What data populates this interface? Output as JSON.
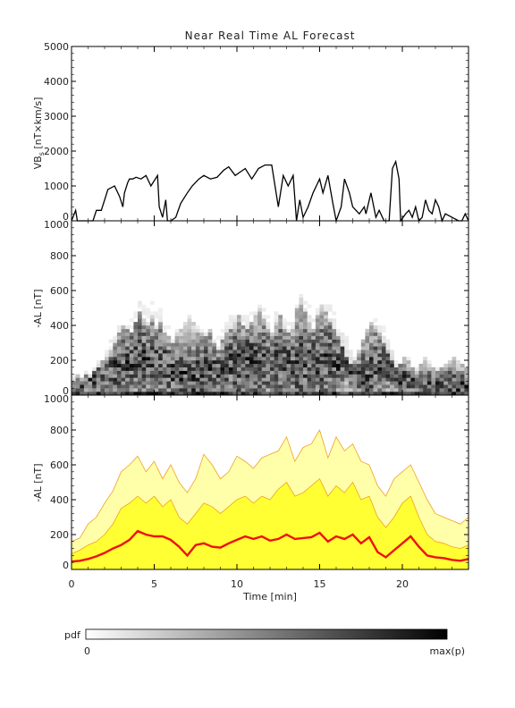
{
  "figure": {
    "title": "Near Real Time AL Forecast",
    "colorbar": {
      "label": "pdf",
      "min_label": "0",
      "max_label": "max(p)"
    }
  },
  "colors": {
    "vbs_line": "#000000",
    "median_line": "#ee1111",
    "band_inner": "#ffff33",
    "band_outer": "#ffffaa",
    "band_edge": "#f0a020",
    "pdf_dark": "#000000"
  },
  "chart_data": [
    {
      "type": "line",
      "panel": "vbs",
      "ylabel": "VB",
      "ylabel_sub": "s",
      "ylabel_units": " [nT×km/s]",
      "xlim": [
        0,
        24
      ],
      "ylim": [
        0,
        5000
      ],
      "yticks": [
        "0",
        "1000",
        "2000",
        "3000",
        "4000",
        "5000"
      ],
      "series": [
        {
          "x": [
            0,
            0.25,
            0.35,
            0.45,
            1.3,
            1.5,
            1.8,
            2.2,
            2.6,
            2.9,
            3.1,
            3.2,
            3.4,
            3.5,
            3.7,
            3.9,
            4.2,
            4.5,
            4.8,
            5.2,
            5.3,
            5.5,
            5.7,
            5.8,
            6.0,
            6.3,
            6.6,
            7.0,
            7.3,
            7.7,
            8.0,
            8.4,
            8.8,
            9.2,
            9.5,
            9.9,
            10.2,
            10.5,
            10.9,
            11.3,
            11.7,
            12.1,
            12.5,
            12.8,
            12.9,
            13.1,
            13.4,
            13.6,
            13.8,
            14.0,
            14.3,
            14.6,
            14.8,
            15.0,
            15.2,
            15.5,
            15.8,
            16.0,
            16.3,
            16.5,
            16.8,
            17.0,
            17.4,
            17.7,
            17.8,
            18.1,
            18.4,
            18.6,
            18.9,
            19.2,
            19.4,
            19.6,
            19.8,
            19.9,
            20.2,
            20.4,
            20.6,
            20.8,
            21.0,
            21.2,
            21.4,
            21.6,
            21.8,
            22.0,
            22.2,
            22.4,
            22.6,
            23.0,
            23.4,
            23.6,
            23.8,
            24.0
          ],
          "y": [
            0,
            300,
            0,
            0,
            0,
            300,
            300,
            900,
            1000,
            700,
            400,
            800,
            1100,
            1200,
            1200,
            1250,
            1200,
            1300,
            1000,
            1300,
            400,
            100,
            600,
            0,
            0,
            100,
            500,
            800,
            1000,
            1200,
            1300,
            1200,
            1250,
            1450,
            1550,
            1300,
            1400,
            1500,
            1200,
            1500,
            1600,
            1600,
            400,
            1300,
            1200,
            1000,
            1300,
            0,
            600,
            100,
            400,
            800,
            1000,
            1200,
            800,
            1300,
            500,
            0,
            400,
            1200,
            800,
            400,
            200,
            400,
            200,
            800,
            100,
            300,
            0,
            0,
            1500,
            1700,
            1200,
            0,
            200,
            300,
            100,
            400,
            0,
            100,
            600,
            300,
            200,
            600,
            400,
            0,
            200,
            100,
            0,
            0,
            200,
            0
          ]
        }
      ]
    },
    {
      "type": "heatmap",
      "panel": "pdf",
      "ylabel": "-AL [nT]",
      "xlim": [
        0,
        24
      ],
      "ylim": [
        0,
        1000
      ],
      "yticks": [
        "0",
        "200",
        "400",
        "600",
        "800",
        "1000"
      ],
      "x_cells": 96,
      "y_bin": 20,
      "median": [
        60,
        55,
        60,
        70,
        80,
        90,
        100,
        110,
        120,
        140,
        150,
        165,
        170,
        180,
        200,
        215,
        220,
        210,
        200,
        205,
        200,
        190,
        170,
        150,
        140,
        120,
        115,
        105,
        75,
        95,
        120,
        130,
        155,
        160,
        150,
        140,
        150,
        180,
        190,
        185,
        170,
        180,
        200,
        190,
        180,
        185,
        195,
        175,
        180,
        190,
        200,
        185,
        180,
        170,
        190,
        200,
        205,
        220,
        195,
        180,
        175,
        200,
        230,
        210,
        180,
        200,
        190,
        150,
        110,
        100,
        110,
        130,
        150,
        170,
        185,
        180,
        160,
        140,
        110,
        90,
        80,
        75,
        70,
        65,
        60,
        55,
        60,
        55,
        55,
        50,
        50,
        60,
        55,
        50,
        50,
        55
      ],
      "spread": [
        80,
        120,
        90,
        120,
        100,
        130,
        150,
        200,
        220,
        260,
        300,
        350,
        400,
        380,
        350,
        420,
        480,
        430,
        400,
        450,
        380,
        420,
        350,
        330,
        300,
        350,
        380,
        420,
        450,
        420,
        380,
        360,
        330,
        380,
        300,
        260,
        320,
        360,
        380,
        420,
        450,
        400,
        380,
        420,
        450,
        500,
        430,
        380,
        350,
        420,
        460,
        380,
        350,
        380,
        500,
        550,
        480,
        420,
        380,
        450,
        520,
        480,
        420,
        380,
        330,
        280,
        220,
        180,
        200,
        250,
        320,
        380,
        420,
        400,
        350,
        300,
        250,
        200,
        160,
        180,
        220,
        200,
        160,
        140,
        180,
        220,
        180,
        150,
        140,
        160,
        180,
        200,
        220,
        200,
        180,
        150
      ]
    },
    {
      "type": "area",
      "panel": "forecast",
      "ylabel": "-AL [nT]",
      "xlabel": "Time [min]",
      "xlim": [
        0,
        24
      ],
      "ylim": [
        0,
        1000
      ],
      "xticks": [
        "0",
        "5",
        "10",
        "15",
        "20"
      ],
      "yticks": [
        "0",
        "200",
        "400",
        "600",
        "800",
        "1000"
      ],
      "x": [
        0,
        0.5,
        1,
        1.5,
        2,
        2.5,
        3,
        3.5,
        4,
        4.5,
        5,
        5.5,
        6,
        6.5,
        7,
        7.5,
        8,
        8.5,
        9,
        9.5,
        10,
        10.5,
        11,
        11.5,
        12,
        12.5,
        13,
        13.5,
        14,
        14.5,
        15,
        15.5,
        16,
        16.5,
        17,
        17.5,
        18,
        18.5,
        19,
        19.5,
        20,
        20.5,
        21,
        21.5,
        22,
        22.5,
        23,
        23.5,
        24
      ],
      "median": [
        45,
        50,
        60,
        75,
        95,
        120,
        140,
        170,
        220,
        200,
        190,
        190,
        170,
        130,
        80,
        140,
        150,
        130,
        125,
        150,
        170,
        190,
        175,
        190,
        165,
        175,
        200,
        175,
        180,
        185,
        210,
        160,
        190,
        175,
        200,
        150,
        185,
        100,
        70,
        110,
        150,
        190,
        130,
        80,
        70,
        65,
        55,
        50,
        60
      ],
      "inner_upper": [
        90,
        110,
        140,
        160,
        200,
        260,
        350,
        380,
        420,
        380,
        420,
        360,
        400,
        300,
        260,
        320,
        380,
        360,
        320,
        360,
        400,
        420,
        380,
        420,
        400,
        460,
        500,
        420,
        440,
        480,
        520,
        420,
        480,
        440,
        500,
        400,
        420,
        300,
        240,
        300,
        380,
        420,
        300,
        200,
        160,
        150,
        130,
        120,
        140
      ],
      "outer_upper": [
        160,
        180,
        260,
        300,
        380,
        450,
        560,
        600,
        650,
        560,
        620,
        520,
        600,
        500,
        440,
        520,
        660,
        600,
        520,
        560,
        650,
        620,
        580,
        640,
        660,
        680,
        760,
        620,
        700,
        720,
        800,
        640,
        760,
        680,
        720,
        620,
        600,
        480,
        420,
        520,
        560,
        600,
        500,
        400,
        320,
        300,
        280,
        260,
        300
      ]
    }
  ]
}
